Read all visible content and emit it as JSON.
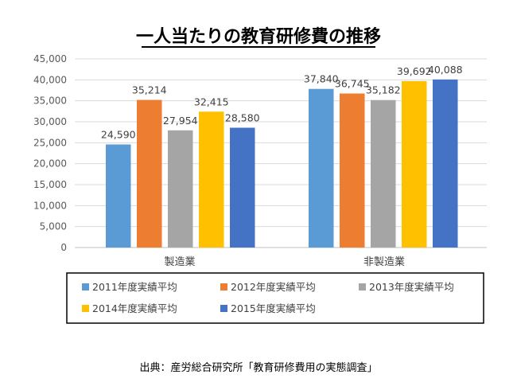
{
  "chart_data": {
    "type": "bar",
    "title": "一人当たりの教育研修費の推移",
    "categories": [
      "製造業",
      "非製造業"
    ],
    "series": [
      {
        "name": "2011年度実績平均",
        "color": "#5B9BD5",
        "values": [
          24590,
          37840
        ]
      },
      {
        "name": "2012年度実績平均",
        "color": "#ED7D31",
        "values": [
          35214,
          36745
        ]
      },
      {
        "name": "2013年度実績平均",
        "color": "#A5A5A5",
        "values": [
          27954,
          35182
        ]
      },
      {
        "name": "2014年度実績平均",
        "color": "#FFC000",
        "values": [
          32415,
          39692
        ]
      },
      {
        "name": "2015年度実績平均",
        "color": "#4472C4",
        "values": [
          28580,
          40088
        ]
      }
    ],
    "value_labels": [
      [
        "24,590",
        "37,840"
      ],
      [
        "35,214",
        "36,745"
      ],
      [
        "27,954",
        "35,182"
      ],
      [
        "32,415",
        "39,692"
      ],
      [
        "28,580",
        "40,088"
      ]
    ],
    "ylim": [
      0,
      45000
    ],
    "yticks": [
      0,
      5000,
      10000,
      15000,
      20000,
      25000,
      30000,
      35000,
      40000,
      45000
    ],
    "ytick_labels": [
      "0",
      "5,000",
      "10,000",
      "15,000",
      "20,000",
      "25,000",
      "30,000",
      "35,000",
      "40,000",
      "45,000"
    ],
    "grid": true,
    "legend_position": "bottom",
    "xlabel": "",
    "ylabel": ""
  },
  "source": "出典：産労総合研究所「教育研修費用の実態調査」"
}
